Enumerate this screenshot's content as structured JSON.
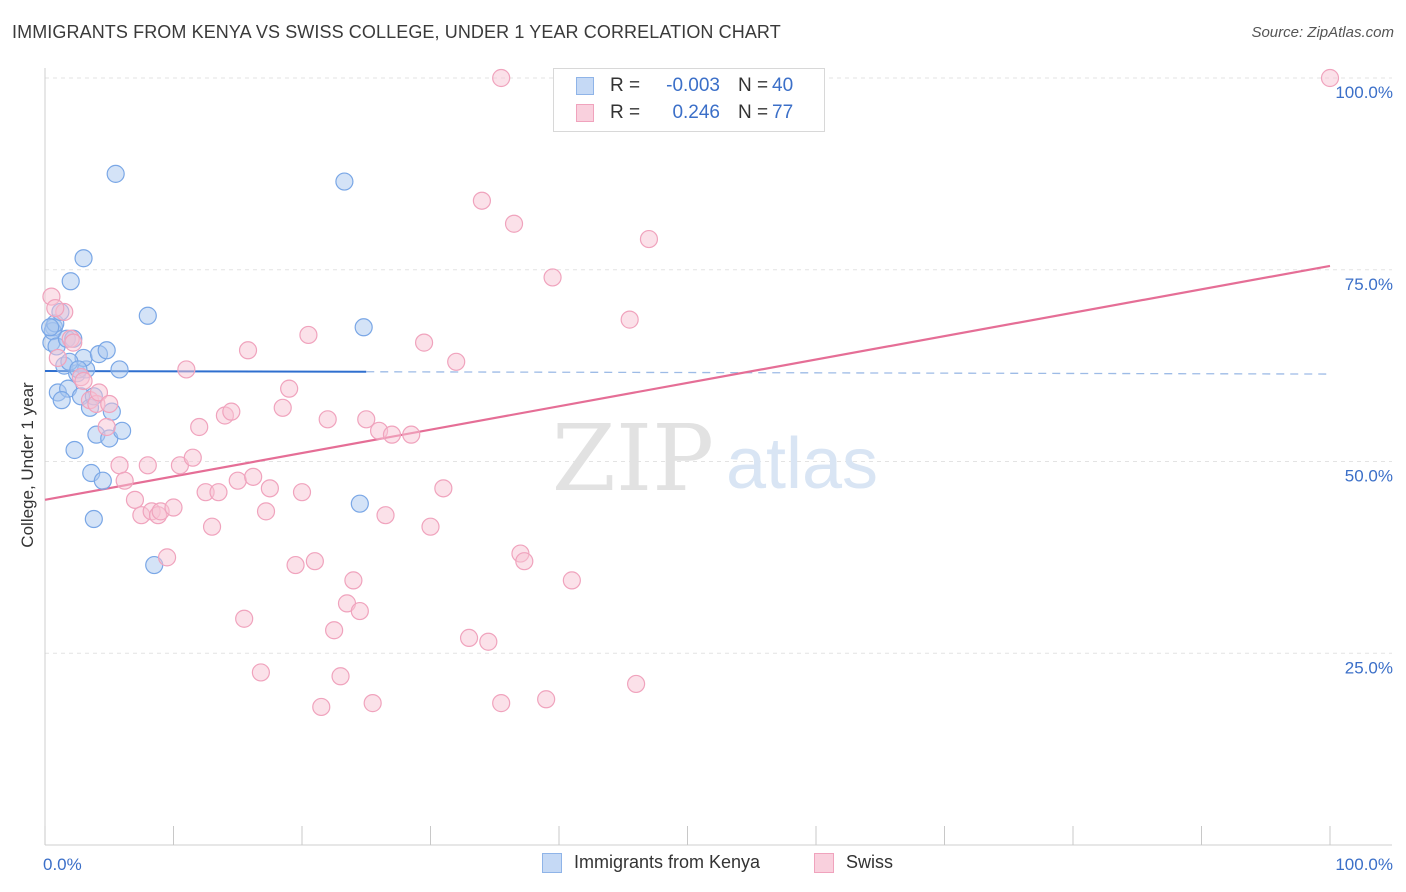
{
  "title": "IMMIGRANTS FROM KENYA VS SWISS COLLEGE, UNDER 1 YEAR CORRELATION CHART",
  "source": "Source: ZipAtlas.com",
  "watermark": {
    "zip": "ZIP",
    "atlas": "atlas"
  },
  "legend": {
    "rows": [
      {
        "r_label": "R =",
        "r_value": "-0.003",
        "n_label": "N =",
        "n_value": "40",
        "color": "#8fb4e8",
        "fill": "#c5d9f5"
      },
      {
        "r_label": "R =",
        "r_value": "0.246",
        "n_label": "N =",
        "n_value": "77",
        "color": "#f0a3bd",
        "fill": "#f9d0dd"
      }
    ]
  },
  "bottom_legend": [
    {
      "label": "Immigrants from Kenya",
      "color": "#8fb4e8",
      "fill": "#c5d9f5"
    },
    {
      "label": "Swiss",
      "color": "#f0a3bd",
      "fill": "#f9d0dd"
    }
  ],
  "chart_data": {
    "type": "scatter",
    "title": "IMMIGRANTS FROM KENYA VS SWISS COLLEGE, UNDER 1 YEAR CORRELATION CHART",
    "xlabel": "",
    "ylabel": "College, Under 1 year",
    "xlim": [
      0,
      100
    ],
    "ylim": [
      0,
      100
    ],
    "x_tick_labels": {
      "left": "0.0%",
      "right": "100.0%"
    },
    "y_ticks": [
      {
        "value": 25,
        "label": "25.0%"
      },
      {
        "value": 50,
        "label": "50.0%"
      },
      {
        "value": 75,
        "label": "75.0%"
      },
      {
        "value": 100,
        "label": "100.0%"
      }
    ],
    "grid": true,
    "series": [
      {
        "name": "Immigrants from Kenya",
        "color": "#7aa7e6",
        "fill": "#aac7f0",
        "trend_color": "#2f6fcf",
        "trend": {
          "x0": 0,
          "y0": 61.8,
          "x1": 25,
          "y1": 61.7,
          "dashed_to_x": 100,
          "dashed_y": 61.4
        },
        "points": [
          [
            0.5,
            65.5
          ],
          [
            0.7,
            67.5
          ],
          [
            0.6,
            67.0
          ],
          [
            0.8,
            68.0
          ],
          [
            0.4,
            67.5
          ],
          [
            0.9,
            65.0
          ],
          [
            1.2,
            69.5
          ],
          [
            1.0,
            59.0
          ],
          [
            1.5,
            62.5
          ],
          [
            1.8,
            59.5
          ],
          [
            1.3,
            58.0
          ],
          [
            2.0,
            73.5
          ],
          [
            2.5,
            61.5
          ],
          [
            2.8,
            58.5
          ],
          [
            3.0,
            76.5
          ],
          [
            3.2,
            62.0
          ],
          [
            3.0,
            63.5
          ],
          [
            3.5,
            57.0
          ],
          [
            3.8,
            58.5
          ],
          [
            2.3,
            51.5
          ],
          [
            3.6,
            48.5
          ],
          [
            4.0,
            53.5
          ],
          [
            4.2,
            64.0
          ],
          [
            4.5,
            47.5
          ],
          [
            4.8,
            64.5
          ],
          [
            5.0,
            53.0
          ],
          [
            5.2,
            56.5
          ],
          [
            3.8,
            42.5
          ],
          [
            5.5,
            87.5
          ],
          [
            6.0,
            54.0
          ],
          [
            5.8,
            62.0
          ],
          [
            8.0,
            69.0
          ],
          [
            8.5,
            36.5
          ],
          [
            1.7,
            66.0
          ],
          [
            1.9,
            63.0
          ],
          [
            2.2,
            66.0
          ],
          [
            23.3,
            86.5
          ],
          [
            24.8,
            67.5
          ],
          [
            24.5,
            44.5
          ],
          [
            2.6,
            62.0
          ]
        ]
      },
      {
        "name": "Swiss",
        "color": "#f0a3bd",
        "fill": "#f7c4d4",
        "trend_color": "#e56e96",
        "trend": {
          "x0": 0,
          "y0": 45.0,
          "x1": 100,
          "y1": 75.5
        },
        "points": [
          [
            0.5,
            71.5
          ],
          [
            1.0,
            63.5
          ],
          [
            1.5,
            69.5
          ],
          [
            2.0,
            66.0
          ],
          [
            2.2,
            65.5
          ],
          [
            2.8,
            61.0
          ],
          [
            3.0,
            60.5
          ],
          [
            3.5,
            58.0
          ],
          [
            4.0,
            57.5
          ],
          [
            4.2,
            59.0
          ],
          [
            4.8,
            54.5
          ],
          [
            5.0,
            57.5
          ],
          [
            5.8,
            49.5
          ],
          [
            6.2,
            47.5
          ],
          [
            7.0,
            45.0
          ],
          [
            7.5,
            43.0
          ],
          [
            8.0,
            49.5
          ],
          [
            8.3,
            43.5
          ],
          [
            8.8,
            43.0
          ],
          [
            9.0,
            43.5
          ],
          [
            9.5,
            37.5
          ],
          [
            10.0,
            44.0
          ],
          [
            10.5,
            49.5
          ],
          [
            11.0,
            62.0
          ],
          [
            11.5,
            50.5
          ],
          [
            12.0,
            54.5
          ],
          [
            12.5,
            46.0
          ],
          [
            13.0,
            41.5
          ],
          [
            13.5,
            46.0
          ],
          [
            14.0,
            56.0
          ],
          [
            14.5,
            56.5
          ],
          [
            15.0,
            47.5
          ],
          [
            15.5,
            29.5
          ],
          [
            15.8,
            64.5
          ],
          [
            16.2,
            48.0
          ],
          [
            16.8,
            22.5
          ],
          [
            17.2,
            43.5
          ],
          [
            17.5,
            46.5
          ],
          [
            18.5,
            57.0
          ],
          [
            19.0,
            59.5
          ],
          [
            19.5,
            36.5
          ],
          [
            20.0,
            46.0
          ],
          [
            20.5,
            66.5
          ],
          [
            21.0,
            37.0
          ],
          [
            21.5,
            18.0
          ],
          [
            22.0,
            55.5
          ],
          [
            22.5,
            28.0
          ],
          [
            23.0,
            22.0
          ],
          [
            23.5,
            31.5
          ],
          [
            24.0,
            34.5
          ],
          [
            24.5,
            30.5
          ],
          [
            25.0,
            55.5
          ],
          [
            25.5,
            18.5
          ],
          [
            26.0,
            54.0
          ],
          [
            26.5,
            43.0
          ],
          [
            27.0,
            53.5
          ],
          [
            28.5,
            53.5
          ],
          [
            29.5,
            65.5
          ],
          [
            30.0,
            41.5
          ],
          [
            31.0,
            46.5
          ],
          [
            32.0,
            63.0
          ],
          [
            33.0,
            27.0
          ],
          [
            34.0,
            84.0
          ],
          [
            34.5,
            26.5
          ],
          [
            35.5,
            100.0
          ],
          [
            35.5,
            18.5
          ],
          [
            36.5,
            81.0
          ],
          [
            37.0,
            38.0
          ],
          [
            37.3,
            37.0
          ],
          [
            39.0,
            19.0
          ],
          [
            39.5,
            74.0
          ],
          [
            41.0,
            34.5
          ],
          [
            45.5,
            68.5
          ],
          [
            46.0,
            21.0
          ],
          [
            47.0,
            79.0
          ],
          [
            100.0,
            100.0
          ],
          [
            0.8,
            70.0
          ]
        ]
      }
    ]
  }
}
